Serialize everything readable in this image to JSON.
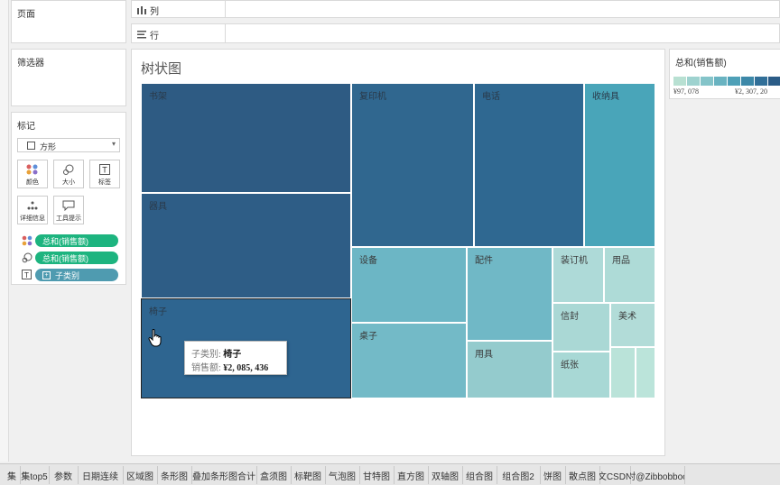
{
  "left_pane": {
    "pages_title": "页面",
    "filters_title": "筛选器",
    "marks_title": "标记",
    "mark_type": "方形",
    "mark_buttons": [
      "颜色",
      "大小",
      "标签",
      "详细信息",
      "工具提示"
    ],
    "pills": [
      {
        "label": "总和(销售额)",
        "color": "#1db47f"
      },
      {
        "label": "总和(销售额)",
        "color": "#1db47f"
      },
      {
        "label": "子类别",
        "color": "#4f9bb0"
      }
    ]
  },
  "shelves": {
    "columns": "列",
    "rows": "行"
  },
  "view": {
    "title": "树状图"
  },
  "legend": {
    "title": "总和(销售额)",
    "min_label": "¥97, 078",
    "max_label": "¥2, 307, 20"
  },
  "treemap": {
    "tiles": [
      {
        "label": "书架",
        "color": "#2e5b83"
      },
      {
        "label": "复印机",
        "color": "#30678f"
      },
      {
        "label": "电话",
        "color": "#2f6891"
      },
      {
        "label": "收纳具",
        "color": "#49a5b9"
      },
      {
        "label": "器具",
        "color": "#2e5d86"
      },
      {
        "label": "设备",
        "color": "#6cb6c5"
      },
      {
        "label": "配件",
        "color": "#70b8c6"
      },
      {
        "label": "装订机",
        "color": "#aedad8"
      },
      {
        "label": "用品",
        "color": "#aedbd7"
      },
      {
        "label": "椅子",
        "color": "#2e6590"
      },
      {
        "label": "桌子",
        "color": "#73bac7"
      },
      {
        "label": "信封",
        "color": "#aad8d5"
      },
      {
        "label": "美术",
        "color": "#b2dcd8"
      },
      {
        "label": "用具",
        "color": "#94cbcd"
      },
      {
        "label": "纸张",
        "color": "#a8d8d5"
      },
      {
        "label": "",
        "color": "#bae3d9"
      },
      {
        "label": "",
        "color": "#bbe4da"
      }
    ]
  },
  "tooltip": {
    "line1_key": "子类别:",
    "line1_val": "椅子",
    "line2_key": "销售额:",
    "line2_val": "¥2, 085, 436"
  },
  "tabs": [
    "集",
    "集top5",
    "参数",
    "日期连续",
    "区域图",
    "条形图",
    "叠加条形图合计",
    "盒须图",
    "标靶图",
    "气泡图",
    "甘特图",
    "直方图",
    "双轴图",
    "组合图",
    "组合图2",
    "饼图",
    "散点图",
    "文CSDN",
    "对@Zibbobboo"
  ],
  "watermark": "CSDN @Zibbobboo"
}
